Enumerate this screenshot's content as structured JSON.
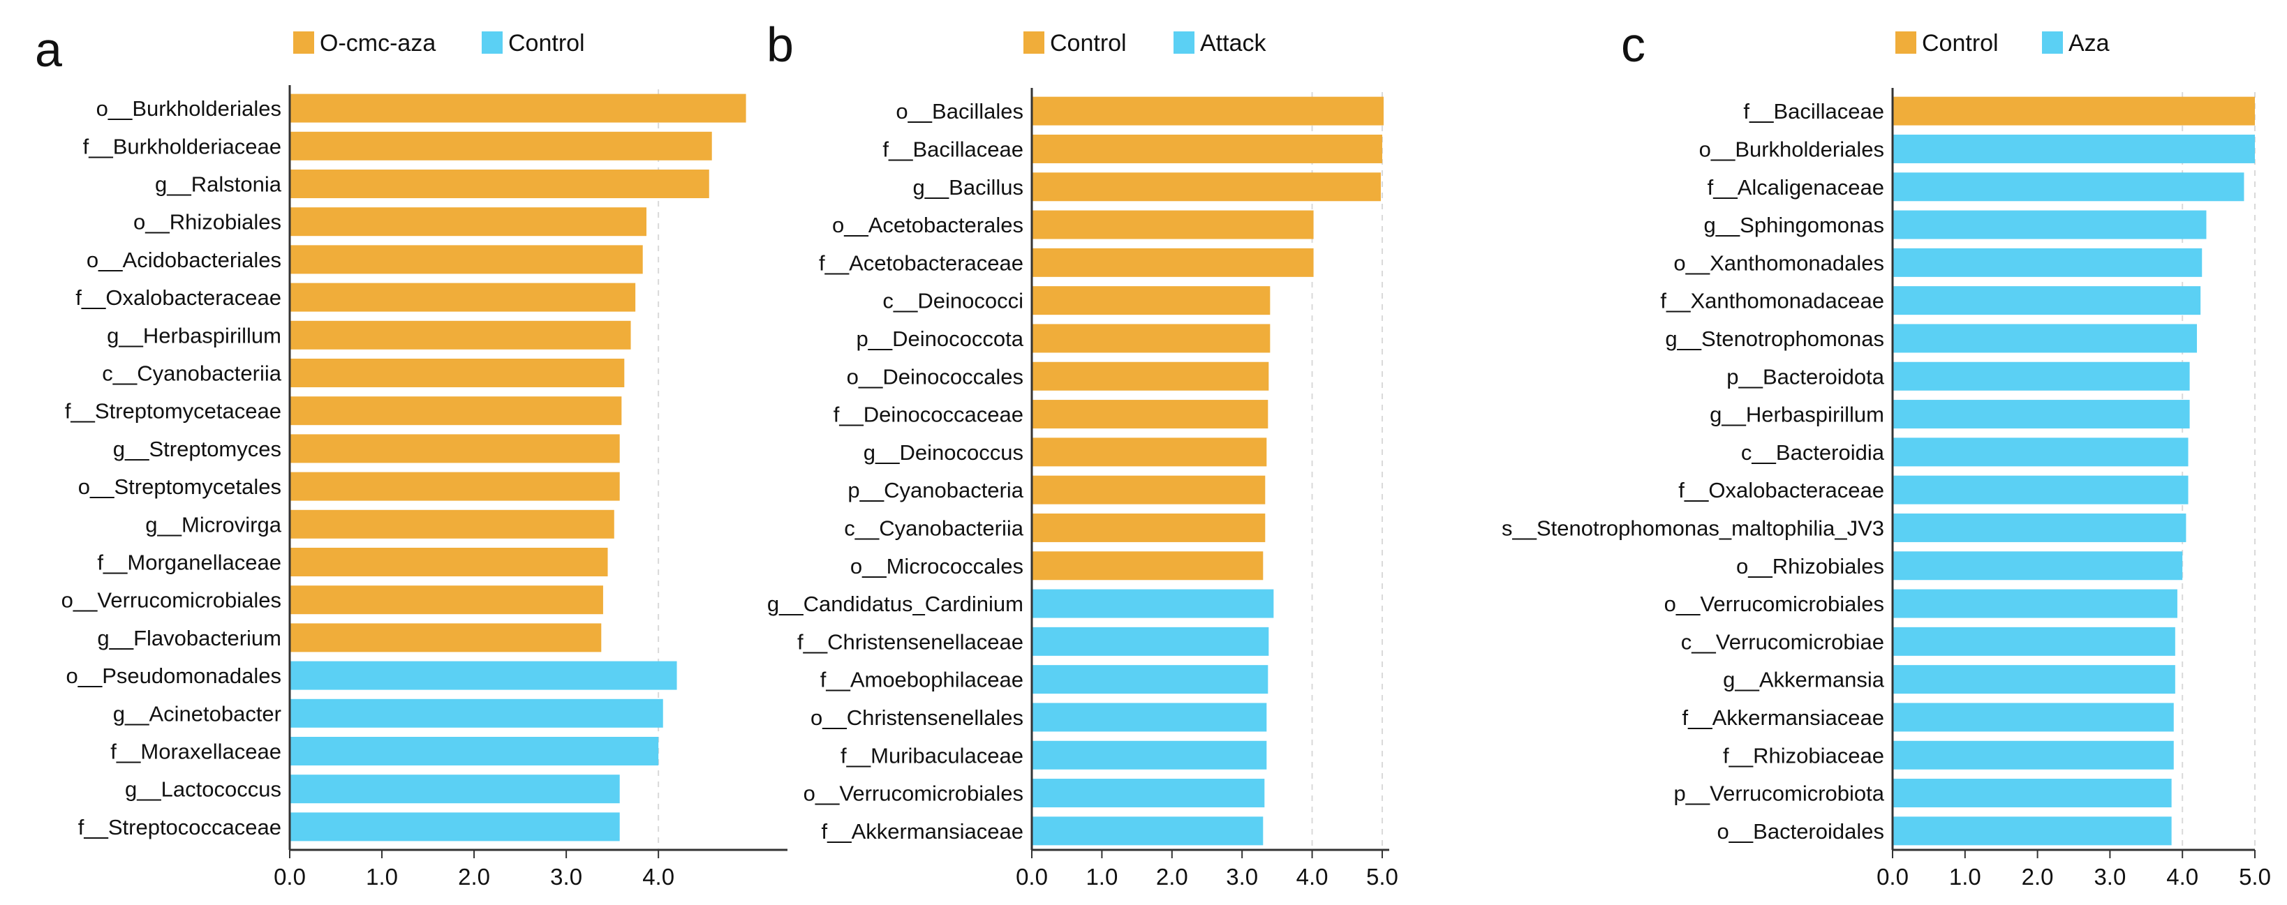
{
  "colors": {
    "orange": "#F0AD3A",
    "blue": "#5BD0F4",
    "axis": "#333333",
    "grid": "#d9d9d9",
    "text": "#111111"
  },
  "chart_data": [
    {
      "type": "bar",
      "orientation": "horizontal",
      "panel_letter": "a",
      "legend": [
        {
          "name": "O-cmc-aza",
          "color": "#F0AD3A"
        },
        {
          "name": "Control",
          "color": "#5BD0F4"
        }
      ],
      "categories": [
        "o__Burkholderiales",
        "f__Burkholderiaceae",
        "g__Ralstonia",
        "o__Rhizobiales",
        "o__Acidobacteriales",
        "f__Oxalobacteraceae",
        "g__Herbaspirillum",
        "c__Cyanobacteriia",
        "f__Streptomycetaceae",
        "g__Streptomyces",
        "o__Streptomycetales",
        "g__Microvirga",
        "f__Morganellaceae",
        "o__Verrucomicrobiales",
        "g__Flavobacterium",
        "o__Pseudomonadales",
        "g__Acinetobacter",
        "f__Moraxellaceae",
        "g__Lactococcus",
        "f__Streptococcaceae"
      ],
      "values": [
        4.95,
        4.58,
        4.55,
        3.87,
        3.83,
        3.75,
        3.7,
        3.63,
        3.6,
        3.58,
        3.58,
        3.52,
        3.45,
        3.4,
        3.38,
        4.2,
        4.05,
        4.0,
        3.58,
        3.58
      ],
      "groups": [
        0,
        0,
        0,
        0,
        0,
        0,
        0,
        0,
        0,
        0,
        0,
        0,
        0,
        0,
        0,
        1,
        1,
        1,
        1,
        1
      ],
      "xticks": [
        "0.0",
        "1.0",
        "2.0",
        "3.0",
        "4.0"
      ],
      "xtick_values": [
        0,
        1,
        2,
        3,
        4
      ],
      "xlim": [
        0,
        5.4
      ],
      "grid_at": 4.0
    },
    {
      "type": "bar",
      "orientation": "horizontal",
      "panel_letter": "b",
      "legend": [
        {
          "name": "Control",
          "color": "#F0AD3A"
        },
        {
          "name": "Attack",
          "color": "#5BD0F4"
        }
      ],
      "categories": [
        "o__Bacillales",
        "f__Bacillaceae",
        "g__Bacillus",
        "o__Acetobacterales",
        "f__Acetobacteraceae",
        "c__Deinococci",
        "p__Deinococcota",
        "o__Deinococcales",
        "f__Deinococcaceae",
        "g__Deinococcus",
        "p__Cyanobacteria",
        "c__Cyanobacteriia",
        "o__Micrococcales",
        "g__Candidatus_Cardinium",
        "f__Christensenellaceae",
        "f__Amoebophilaceae",
        "o__Christensenellales",
        "f__Muribaculaceae",
        "o__Verrucomicrobiales",
        "f__Akkermansiaceae"
      ],
      "values": [
        5.02,
        5.0,
        4.98,
        4.02,
        4.02,
        3.4,
        3.4,
        3.38,
        3.37,
        3.35,
        3.33,
        3.33,
        3.3,
        3.45,
        3.38,
        3.37,
        3.35,
        3.35,
        3.32,
        3.3
      ],
      "groups": [
        0,
        0,
        0,
        0,
        0,
        0,
        0,
        0,
        0,
        0,
        0,
        0,
        0,
        1,
        1,
        1,
        1,
        1,
        1,
        1
      ],
      "xticks": [
        "0.0",
        "1.0",
        "2.0",
        "3.0",
        "4.0",
        "5.0"
      ],
      "xtick_values": [
        0,
        1,
        2,
        3,
        4,
        5
      ],
      "xlim": [
        0,
        5.1
      ],
      "grid_at": [
        4.0,
        5.0
      ]
    },
    {
      "type": "bar",
      "orientation": "horizontal",
      "panel_letter": "c",
      "legend": [
        {
          "name": "Control",
          "color": "#F0AD3A"
        },
        {
          "name": "Aza",
          "color": "#5BD0F4"
        }
      ],
      "categories": [
        "f__Bacillaceae",
        "o__Burkholderiales",
        "f__Alcaligenaceae",
        "g__Sphingomonas",
        "o__Xanthomonadales",
        "f__Xanthomonadaceae",
        "g__Stenotrophomonas",
        "p__Bacteroidota",
        "g__Herbaspirillum",
        "c__Bacteroidia",
        "f__Oxalobacteraceae",
        "s__Stenotrophomonas_maltophilia_JV3",
        "o__Rhizobiales",
        "o__Verrucomicrobiales",
        "c__Verrucomicrobiae",
        "g__Akkermansia",
        "f__Akkermansiaceae",
        "f__Rhizobiaceae",
        "p__Verrucomicrobiota",
        "o__Bacteroidales"
      ],
      "values": [
        5.0,
        5.0,
        4.85,
        4.33,
        4.27,
        4.25,
        4.2,
        4.1,
        4.1,
        4.08,
        4.08,
        4.05,
        4.0,
        3.93,
        3.9,
        3.9,
        3.88,
        3.88,
        3.85,
        3.85
      ],
      "groups": [
        0,
        1,
        1,
        1,
        1,
        1,
        1,
        1,
        1,
        1,
        1,
        1,
        1,
        1,
        1,
        1,
        1,
        1,
        1,
        1
      ],
      "xticks": [
        "0.0",
        "1.0",
        "2.0",
        "3.0",
        "4.0",
        "5.0"
      ],
      "xtick_values": [
        0,
        1,
        2,
        3,
        4,
        5
      ],
      "xlim": [
        0,
        5.0
      ],
      "grid_at": [
        4.0,
        5.0
      ]
    }
  ]
}
